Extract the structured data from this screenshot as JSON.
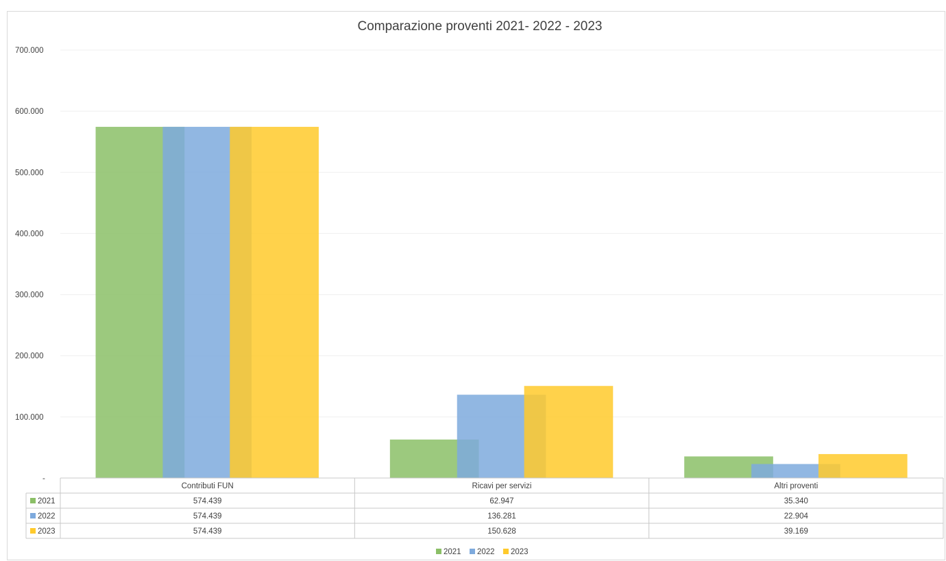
{
  "chart_data": {
    "type": "bar",
    "title": "Comparazione proventi 2021- 2022 - 2023",
    "categories": [
      "Contributi FUN",
      "Ricavi per servizi",
      "Altri proventi"
    ],
    "series": [
      {
        "name": "2021",
        "color": "#8bbf67",
        "values": [
          574439,
          62947,
          35340
        ],
        "labels": [
          "574.439",
          "62.947",
          "35.340"
        ]
      },
      {
        "name": "2022",
        "color": "#7eaadd",
        "values": [
          574439,
          136281,
          22904
        ],
        "labels": [
          "574.439",
          "136.281",
          "22.904"
        ]
      },
      {
        "name": "2023",
        "color": "#ffca2c",
        "values": [
          574439,
          150628,
          39169
        ],
        "labels": [
          "574.439",
          "150.628",
          "39.169"
        ]
      }
    ],
    "ylim": [
      0,
      700000
    ],
    "yticks": [
      0,
      100000,
      200000,
      300000,
      400000,
      500000,
      600000,
      700000
    ],
    "ytick_labels": [
      "-",
      "100.000",
      "200.000",
      "300.000",
      "400.000",
      "500.000",
      "600.000",
      "700.000"
    ],
    "grid": true,
    "legend": "bottom",
    "data_table": true
  }
}
